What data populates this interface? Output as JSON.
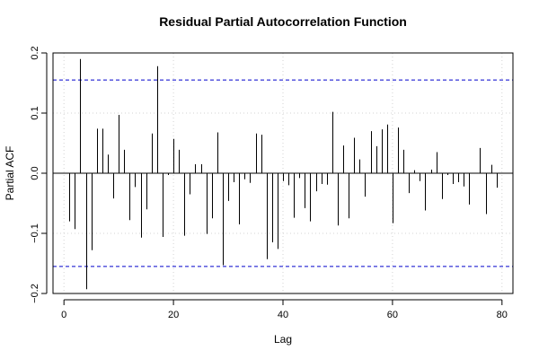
{
  "chart_data": {
    "type": "bar",
    "title": "Residual Partial Autocorrelation Function",
    "xlabel": "Lag",
    "ylabel": "Partial ACF",
    "xlim": [
      -2,
      82
    ],
    "ylim": [
      -0.2,
      0.2
    ],
    "x_ticks": [
      0,
      20,
      40,
      60,
      80
    ],
    "y_ticks": [
      -0.2,
      -0.1,
      0.0,
      0.1,
      0.2
    ],
    "y_tick_labels": [
      "−0.2",
      "−0.1",
      "0.0",
      "0.1",
      "0.2"
    ],
    "confidence_bounds": [
      0.155,
      -0.155
    ],
    "grid": true,
    "colors": {
      "bars": "#000000",
      "bounds": "#0000cc",
      "grid": "#d3d3d3"
    },
    "lags": [
      1,
      2,
      3,
      4,
      5,
      6,
      7,
      8,
      9,
      10,
      11,
      12,
      13,
      14,
      15,
      16,
      17,
      18,
      19,
      20,
      21,
      22,
      23,
      24,
      25,
      26,
      27,
      28,
      29,
      30,
      31,
      32,
      33,
      34,
      35,
      36,
      37,
      38,
      39,
      40,
      41,
      42,
      43,
      44,
      45,
      46,
      47,
      48,
      49,
      50,
      51,
      52,
      53,
      54,
      55,
      56,
      57,
      58,
      59,
      60,
      61,
      62,
      63,
      64,
      65,
      66,
      67,
      68,
      69,
      70,
      71,
      72,
      73,
      74,
      75,
      76,
      77,
      78,
      79
    ],
    "values": [
      -0.08,
      -0.093,
      0.19,
      -0.193,
      -0.128,
      0.074,
      0.074,
      0.031,
      -0.042,
      0.097,
      0.039,
      -0.078,
      -0.023,
      -0.107,
      -0.06,
      0.066,
      0.178,
      -0.106,
      -0.003,
      0.057,
      0.039,
      -0.104,
      -0.035,
      0.015,
      0.015,
      -0.101,
      -0.075,
      0.068,
      -0.153,
      -0.046,
      -0.015,
      -0.085,
      -0.01,
      -0.016,
      0.066,
      0.064,
      -0.143,
      -0.115,
      -0.126,
      -0.013,
      -0.02,
      -0.074,
      -0.008,
      -0.058,
      -0.08,
      -0.03,
      -0.018,
      -0.019,
      0.102,
      -0.087,
      0.046,
      -0.075,
      0.059,
      0.023,
      -0.039,
      0.07,
      0.045,
      0.073,
      0.081,
      -0.083,
      0.076,
      0.039,
      -0.033,
      0.005,
      -0.013,
      -0.062,
      0.006,
      0.035,
      -0.043,
      -0.003,
      -0.018,
      -0.015,
      -0.022,
      -0.052,
      0.0,
      0.042,
      -0.068,
      0.014,
      -0.024
    ]
  }
}
